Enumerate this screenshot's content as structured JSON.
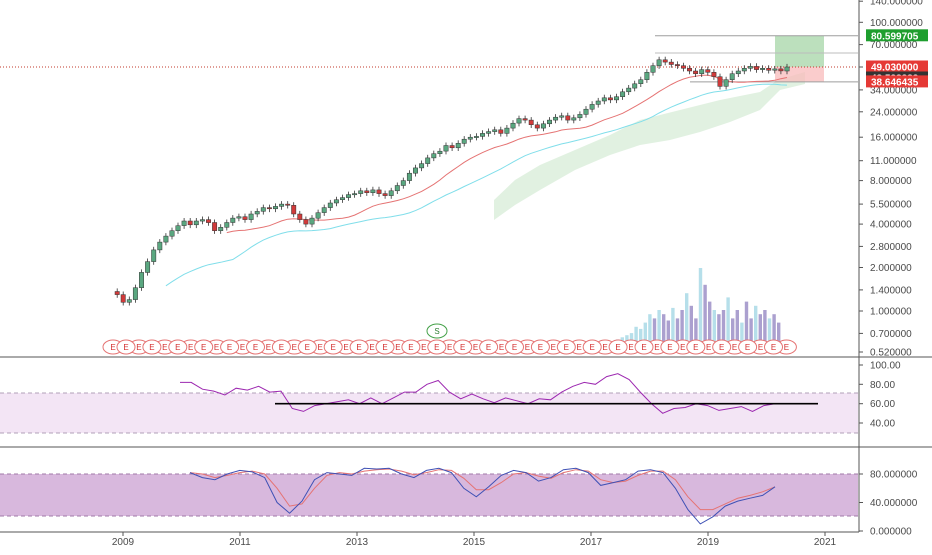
{
  "colors": {
    "up": "#53b987",
    "down": "#eb4d5c",
    "candle_up_fill": "#5aa780",
    "candle_down_fill": "#d13a3a",
    "ma_red": "#e57373",
    "ma_cyan": "#80deea",
    "cloud": "#c8e6c9",
    "rsi_line": "#9c27b0",
    "rsi_band": "#f3e5f5",
    "stoch_band": "#d8b8dd",
    "stoch_k": "#3f51b5",
    "stoch_d": "#e57373",
    "volume": "#9c8fc7",
    "price_line": "#c0392b",
    "target_box": "#a5d6a7",
    "stop_box": "#f8bbbb",
    "badge_green": "#1e9e2e",
    "badge_red": "#e53935",
    "badge_dark": "#333333"
  },
  "main_axis": {
    "ticks": [
      "140.000000",
      "100.000000",
      "70.000000",
      "49.000000",
      "34.000000",
      "24.000000",
      "16.000000",
      "11.000000",
      "8.000000",
      "5.500000",
      "4.000000",
      "2.800000",
      "2.000000",
      "1.400000",
      "1.000000",
      "0.700000",
      "0.520000"
    ]
  },
  "price_badges": {
    "target": "80.599705",
    "current": "49.030000",
    "prev": "48.528283",
    "stop": "38.646435"
  },
  "rsi_axis": {
    "ticks": [
      "100.00",
      "80.00",
      "60.00",
      "40.00"
    ]
  },
  "stoch_axis": {
    "ticks": [
      "80.000000",
      "40.000000",
      "0.000000"
    ]
  },
  "x_axis": {
    "labels": [
      "2009",
      "2011",
      "2013",
      "2015",
      "2017",
      "2019",
      "2021"
    ]
  },
  "events": {
    "earnings_label": "E",
    "split_label": "S"
  },
  "chart_data": {
    "type": "candlestick",
    "scale": "log",
    "ylim": [
      0.5,
      145
    ],
    "x_start_year": 2008.9,
    "x_end_year": 2020.5,
    "closes": [
      1.3,
      1.15,
      1.2,
      1.45,
      1.85,
      2.2,
      2.65,
      3.0,
      3.3,
      3.6,
      3.9,
      4.2,
      3.95,
      4.2,
      4.3,
      4.1,
      3.6,
      3.8,
      4.1,
      4.4,
      4.5,
      4.3,
      4.7,
      4.9,
      5.2,
      5.1,
      5.3,
      5.5,
      5.4,
      4.7,
      4.3,
      4.0,
      4.4,
      4.8,
      5.2,
      5.6,
      5.9,
      6.1,
      6.4,
      6.5,
      6.8,
      6.6,
      6.9,
      6.5,
      6.3,
      6.8,
      7.4,
      8.0,
      9.0,
      9.8,
      10.5,
      11.5,
      12.3,
      12.8,
      14.0,
      13.5,
      14.5,
      15.5,
      16.0,
      16.2,
      17.0,
      17.5,
      18.0,
      17.0,
      18.5,
      20.0,
      21.5,
      21.0,
      19.5,
      18.5,
      19.8,
      21.0,
      22.0,
      22.5,
      21.0,
      21.8,
      23.0,
      25.0,
      27.0,
      28.5,
      30.0,
      29.0,
      30.5,
      33.0,
      35.0,
      37.5,
      40.0,
      45.0,
      50.0,
      55.0,
      53.0,
      51.0,
      50.0,
      48.0,
      46.0,
      44.0,
      47.0,
      45.0,
      42.0,
      36.0,
      40.0,
      44.0,
      46.0,
      48.0,
      49.5,
      47.0,
      48.0,
      46.5,
      47.5,
      46.0,
      49.0
    ],
    "volume": [
      0.3,
      0.35,
      0.4,
      0.45,
      0.6,
      0.55,
      0.7,
      0.9,
      0.8,
      1.0,
      0.9,
      0.75,
      1.05,
      0.8,
      1.0,
      1.4,
      1.1,
      0.8,
      2.0,
      1.6,
      1.2,
      1.0,
      0.9,
      1.0,
      1.3,
      0.8,
      1.0,
      0.7,
      1.2,
      0.8,
      1.1,
      0.9,
      1.0,
      0.8,
      0.9,
      0.7
    ],
    "rsi": [
      82,
      82,
      75,
      73,
      69,
      76,
      74,
      78,
      72,
      73,
      55,
      52,
      58,
      60,
      62,
      64,
      60,
      66,
      60,
      66,
      72,
      72,
      80,
      84,
      72,
      65,
      70,
      65,
      61,
      66,
      63,
      60,
      65,
      64,
      72,
      78,
      82,
      80,
      88,
      91,
      85,
      72,
      60,
      50,
      55,
      56,
      60,
      58,
      53,
      55,
      57,
      52,
      58,
      60
    ],
    "rsi_level": 60,
    "stoch_k": [
      82,
      75,
      72,
      80,
      85,
      83,
      75,
      40,
      25,
      42,
      72,
      82,
      80,
      78,
      88,
      87,
      88,
      80,
      75,
      85,
      88,
      82,
      60,
      48,
      62,
      78,
      85,
      82,
      70,
      75,
      86,
      88,
      82,
      64,
      68,
      72,
      84,
      86,
      82,
      60,
      30,
      10,
      20,
      35,
      42,
      46,
      50,
      62
    ],
    "stoch_d": [
      82,
      80,
      75,
      78,
      82,
      84,
      80,
      60,
      35,
      38,
      60,
      78,
      82,
      80,
      84,
      86,
      87,
      84,
      79,
      82,
      86,
      85,
      74,
      58,
      58,
      68,
      80,
      82,
      77,
      74,
      82,
      86,
      84,
      72,
      68,
      70,
      78,
      84,
      84,
      72,
      48,
      30,
      30,
      38,
      46,
      50,
      55,
      62
    ]
  }
}
